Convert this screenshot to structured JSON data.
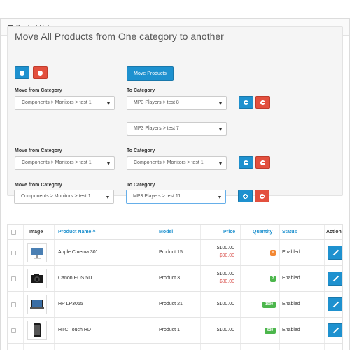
{
  "panel": {
    "title": "Product List"
  },
  "mover": {
    "title": "Move All Products from One category to another",
    "move_button": "Move Products",
    "from_label": "Move from Category",
    "to_label": "To Category",
    "rows": [
      {
        "from": "Components  >  Monitors  >  test 1",
        "to": [
          "MP3 Players  >  test 8",
          "MP3 Players  >  test 7"
        ]
      },
      {
        "from": "Components  >  Monitors  >  test 1",
        "to": [
          "Components  >  Monitors  >  test 1"
        ]
      },
      {
        "from": "Components  >  Monitors  >  test 1",
        "to": [
          "MP3 Players  >  test 11"
        ]
      }
    ]
  },
  "table": {
    "headers": {
      "image": "Image",
      "name": "Product Name ^",
      "model": "Model",
      "price": "Price",
      "quantity": "Quantity",
      "status": "Status",
      "action": "Action"
    },
    "rows": [
      {
        "name": "Apple Cinema 30\"",
        "model": "Product 15",
        "price": "$100.00",
        "special": "$90.00",
        "quantity": "0",
        "qty_color": "#f38733",
        "status": "Enabled",
        "icon": "monitor-thumbnail"
      },
      {
        "name": "Canon EOS 5D",
        "model": "Product 3",
        "price": "$100.00",
        "special": "$80.00",
        "quantity": "7",
        "qty_color": "#4cb64c",
        "status": "Enabled",
        "icon": "camera-thumbnail"
      },
      {
        "name": "HP LP3065",
        "model": "Product 21",
        "price": "$100.00",
        "special": "",
        "quantity": "1000",
        "qty_color": "#4cb64c",
        "status": "Enabled",
        "icon": "laptop-thumbnail"
      },
      {
        "name": "HTC Touch HD",
        "model": "Product 1",
        "price": "$100.00",
        "special": "",
        "quantity": "939",
        "qty_color": "#4cb64c",
        "status": "Enabled",
        "icon": "phone-thumbnail"
      }
    ]
  },
  "colors": {
    "primary": "#1e91cf",
    "danger": "#e3503e",
    "warning": "#f38733",
    "success": "#4cb64c"
  }
}
